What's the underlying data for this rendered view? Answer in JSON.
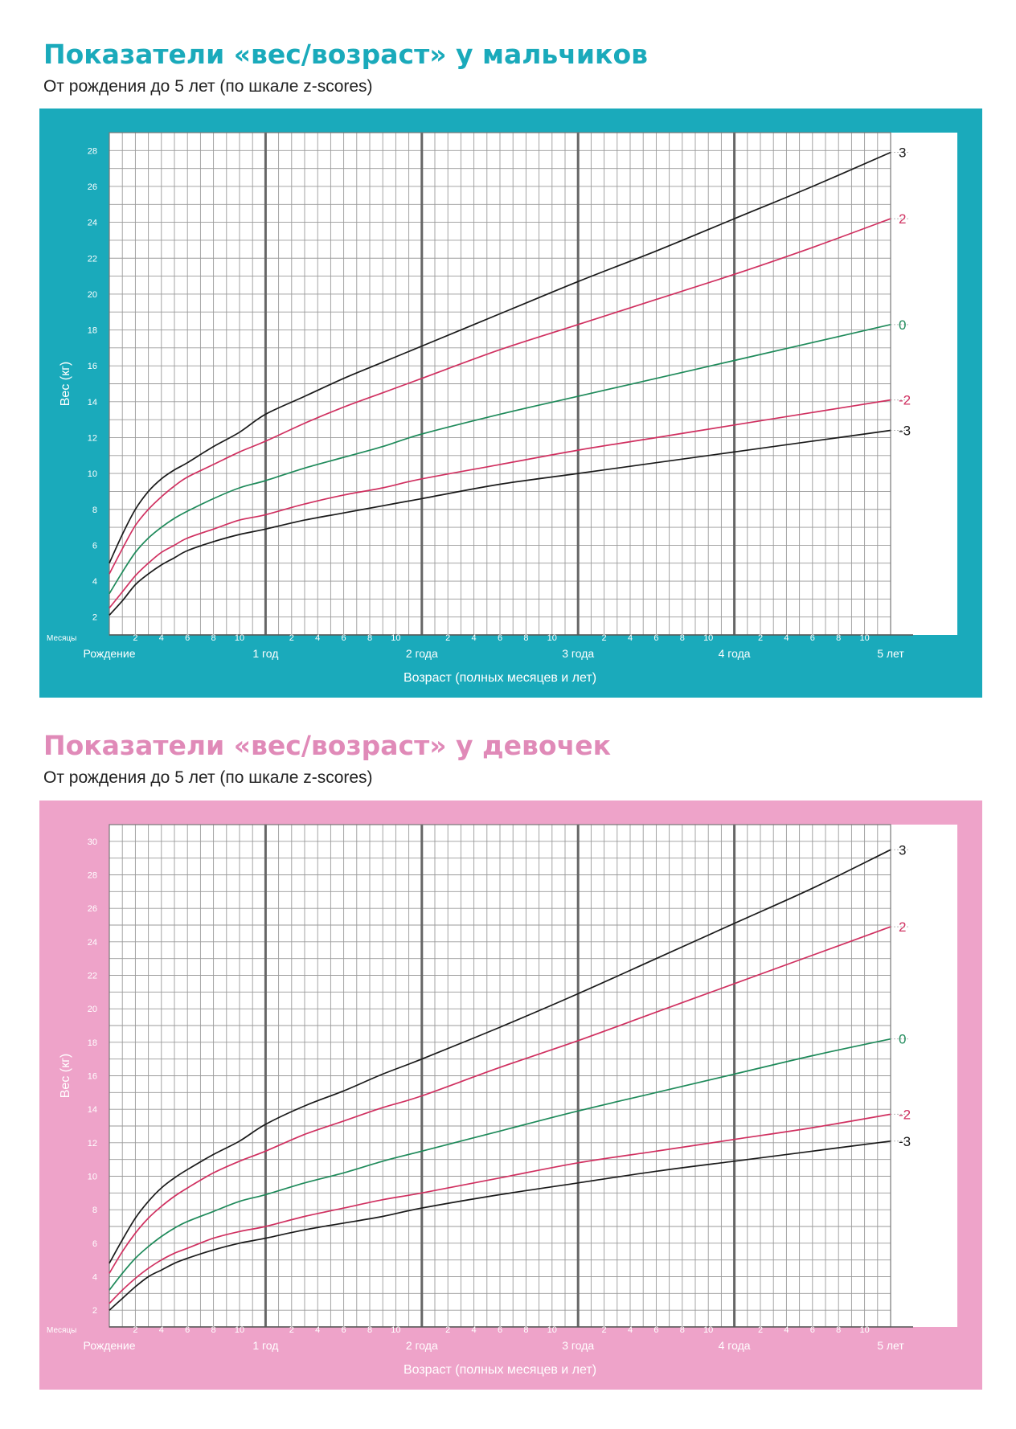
{
  "boys": {
    "title": "Показатели «вес/возраст» у мальчиков",
    "subtitle": "От рождения до 5 лет (по шкале z-scores)",
    "colors": {
      "title": "#1aaabb",
      "background": "#1aaabb"
    }
  },
  "girls": {
    "title": "Показатели «вес/возраст» у девочек",
    "subtitle": "От рождения до 5 лет (по шкале z-scores)",
    "colors": {
      "title": "#e08ab8",
      "background": "#eea3c9"
    }
  },
  "colors": {
    "z3": "#1a1a1a",
    "z2": "#d03060",
    "z0": "#1e8a5a"
  },
  "chart_data": [
    {
      "type": "line",
      "ylabel": "Вес (кг)",
      "xlabel": "Возраст (полных месяцев и лет)",
      "months_label": "Месяцы",
      "year_labels": [
        "Рождение",
        "1 год",
        "2 года",
        "3 года",
        "4 года",
        "5 лет"
      ],
      "month_tick_labels": [
        "2",
        "4",
        "6",
        "8",
        "10"
      ],
      "xlim": [
        0,
        60
      ],
      "ylim": [
        1,
        29
      ],
      "yticks": [
        2,
        4,
        6,
        8,
        10,
        12,
        14,
        16,
        18,
        20,
        22,
        24,
        26,
        28
      ],
      "grid": true,
      "x": [
        0,
        1,
        2,
        3,
        4,
        5,
        6,
        8,
        10,
        12,
        15,
        18,
        21,
        24,
        30,
        36,
        42,
        48,
        54,
        60
      ],
      "series": [
        {
          "name": "3",
          "color_key": "z3",
          "values": [
            5.0,
            6.6,
            8.0,
            9.0,
            9.7,
            10.2,
            10.6,
            11.5,
            12.3,
            13.3,
            14.3,
            15.3,
            16.2,
            17.1,
            18.9,
            20.7,
            22.4,
            24.2,
            26.0,
            27.9
          ]
        },
        {
          "name": "2",
          "color_key": "z2",
          "values": [
            4.4,
            5.8,
            7.1,
            8.0,
            8.7,
            9.3,
            9.8,
            10.5,
            11.2,
            11.8,
            12.8,
            13.7,
            14.5,
            15.3,
            16.9,
            18.3,
            19.7,
            21.1,
            22.6,
            24.2
          ]
        },
        {
          "name": "0",
          "color_key": "z0",
          "values": [
            3.3,
            4.5,
            5.6,
            6.4,
            7.0,
            7.5,
            7.9,
            8.6,
            9.2,
            9.6,
            10.3,
            10.9,
            11.5,
            12.2,
            13.3,
            14.3,
            15.3,
            16.3,
            17.3,
            18.3
          ]
        },
        {
          "name": "-2",
          "color_key": "z2",
          "values": [
            2.5,
            3.4,
            4.3,
            5.0,
            5.6,
            6.0,
            6.4,
            6.9,
            7.4,
            7.7,
            8.3,
            8.8,
            9.2,
            9.7,
            10.5,
            11.3,
            12.0,
            12.7,
            13.4,
            14.1
          ]
        },
        {
          "name": "-3",
          "color_key": "z3",
          "values": [
            2.1,
            2.9,
            3.8,
            4.4,
            4.9,
            5.3,
            5.7,
            6.2,
            6.6,
            6.9,
            7.4,
            7.8,
            8.2,
            8.6,
            9.4,
            10.0,
            10.6,
            11.2,
            11.8,
            12.4
          ]
        }
      ]
    },
    {
      "type": "line",
      "ylabel": "Вес (кг)",
      "xlabel": "Возраст (полных месяцев и лет)",
      "months_label": "Месяцы",
      "year_labels": [
        "Рождение",
        "1 год",
        "2 года",
        "3 года",
        "4 года",
        "5 лет"
      ],
      "month_tick_labels": [
        "2",
        "4",
        "6",
        "8",
        "10"
      ],
      "xlim": [
        0,
        60
      ],
      "ylim": [
        1,
        31
      ],
      "yticks": [
        2,
        4,
        6,
        8,
        10,
        12,
        14,
        16,
        18,
        20,
        22,
        24,
        26,
        28,
        30
      ],
      "grid": true,
      "x": [
        0,
        1,
        2,
        3,
        4,
        5,
        6,
        8,
        10,
        12,
        15,
        18,
        21,
        24,
        30,
        36,
        42,
        48,
        54,
        60
      ],
      "series": [
        {
          "name": "3",
          "color_key": "z3",
          "values": [
            4.8,
            6.2,
            7.5,
            8.5,
            9.3,
            9.9,
            10.4,
            11.3,
            12.1,
            13.1,
            14.2,
            15.1,
            16.1,
            17.0,
            18.9,
            20.9,
            23.0,
            25.1,
            27.2,
            29.5
          ]
        },
        {
          "name": "2",
          "color_key": "z2",
          "values": [
            4.2,
            5.5,
            6.6,
            7.5,
            8.2,
            8.8,
            9.3,
            10.2,
            10.9,
            11.5,
            12.5,
            13.3,
            14.1,
            14.8,
            16.5,
            18.1,
            19.8,
            21.5,
            23.2,
            24.9
          ]
        },
        {
          "name": "0",
          "color_key": "z0",
          "values": [
            3.2,
            4.2,
            5.1,
            5.8,
            6.4,
            6.9,
            7.3,
            7.9,
            8.5,
            8.9,
            9.6,
            10.2,
            10.9,
            11.5,
            12.7,
            13.9,
            15.0,
            16.1,
            17.2,
            18.2
          ]
        },
        {
          "name": "-2",
          "color_key": "z2",
          "values": [
            2.4,
            3.2,
            3.9,
            4.5,
            5.0,
            5.4,
            5.7,
            6.3,
            6.7,
            7.0,
            7.6,
            8.1,
            8.6,
            9.0,
            9.9,
            10.8,
            11.5,
            12.2,
            12.9,
            13.7
          ]
        },
        {
          "name": "-3",
          "color_key": "z3",
          "values": [
            2.0,
            2.7,
            3.4,
            4.0,
            4.4,
            4.8,
            5.1,
            5.6,
            6.0,
            6.3,
            6.8,
            7.2,
            7.6,
            8.1,
            8.9,
            9.6,
            10.3,
            10.9,
            11.5,
            12.1
          ]
        }
      ]
    }
  ]
}
